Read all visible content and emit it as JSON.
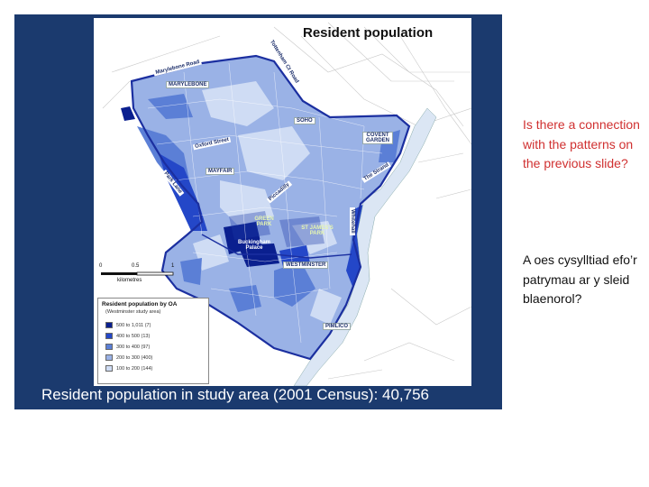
{
  "map": {
    "title": "Resident population",
    "caption": "Resident population in study area (2001 Census): 40,756",
    "place_labels": {
      "marylebone": "MARYLEBONE",
      "soho": "SOHO",
      "covent_garden": "COVENT GARDEN",
      "mayfair": "MAYFAIR",
      "green_park": "GREEN PARK",
      "st_james_park": "ST JAMES'S PARK",
      "buckingham_palace": "Buckingham Palace",
      "westminster": "WESTMINSTER",
      "pimlico": "PIMLICO"
    },
    "street_labels": {
      "marylebone_road": "Marylebone Road",
      "tottenham_ct_road": "Tottenham Ct Road",
      "oxford_street": "Oxford Street",
      "park_lane": "Park Lane",
      "piccadilly": "Piccadilly",
      "the_strand": "The Strand",
      "whitehall": "Whitehall"
    },
    "scale": {
      "ticks": [
        "0",
        "0.5",
        "1"
      ],
      "unit": "kilometres"
    },
    "legend": {
      "title": "Resident population by OA",
      "subtitle": "(Westminster study area)",
      "classes": [
        {
          "range": "500 to 1,011",
          "count": "(7)",
          "color": "#0a1f8f"
        },
        {
          "range": "400 to 500",
          "count": "(13)",
          "color": "#2447c8"
        },
        {
          "range": "300 to 400",
          "count": "(97)",
          "color": "#5b7fd6"
        },
        {
          "range": "200 to 300",
          "count": "(400)",
          "color": "#9ab2e6"
        },
        {
          "range": "100 to 200",
          "count": "(144)",
          "color": "#cfdcf4"
        }
      ]
    }
  },
  "side_text": {
    "english": "Is there a connection with the patterns on the previous slide?",
    "welsh": "A oes cysylltiad efo’r patrymau ar y sleid blaenorol?"
  }
}
